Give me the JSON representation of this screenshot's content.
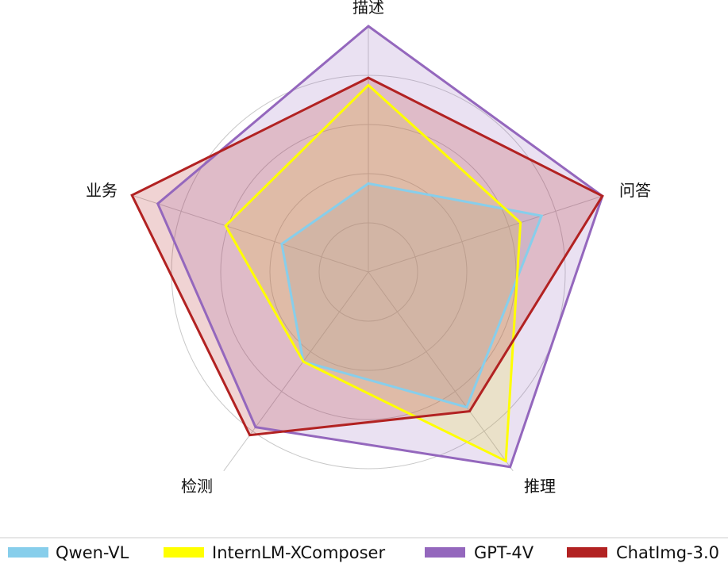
{
  "chart_data": {
    "type": "radar",
    "title": "",
    "axes": [
      "描述",
      "问答",
      "推理",
      "检测",
      "业务"
    ],
    "rlim": [
      0,
      100
    ],
    "grid": true,
    "legend_position": "bottom",
    "series": [
      {
        "name": "Qwen-VL",
        "color": "#87ceeb",
        "values": [
          36,
          74,
          68,
          45,
          37
        ]
      },
      {
        "name": "InternLM-XComposer",
        "color": "#ffff00",
        "values": [
          76,
          65,
          95,
          45,
          61
        ]
      },
      {
        "name": "GPT-4V",
        "color": "#9467bd",
        "values": [
          100,
          100,
          98,
          78,
          90
        ]
      },
      {
        "name": "ChatImg-3.0",
        "color": "#b22222",
        "values": [
          79,
          100,
          70,
          82,
          101
        ]
      }
    ]
  }
}
